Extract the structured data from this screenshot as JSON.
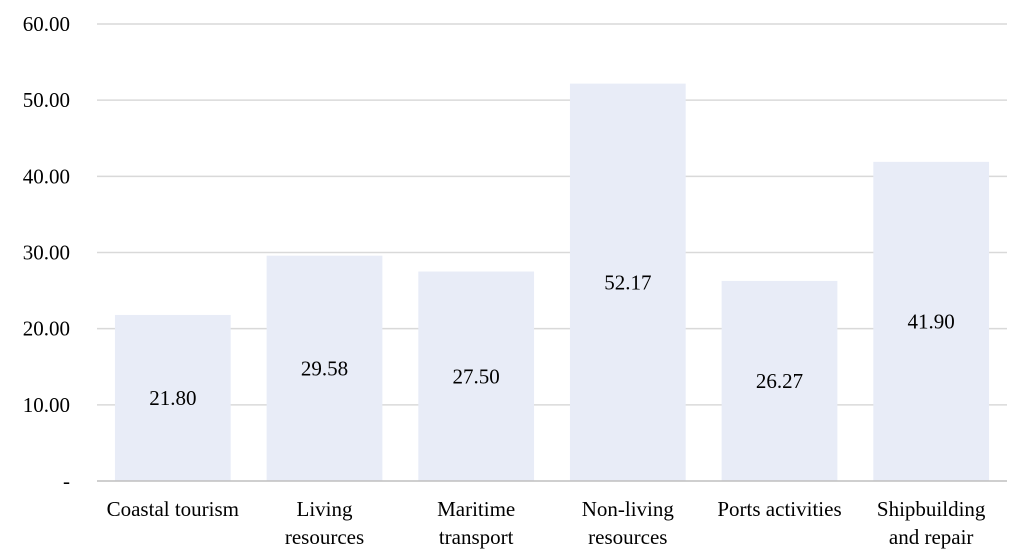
{
  "chart_data": {
    "type": "bar",
    "categories": [
      [
        "Coastal tourism"
      ],
      [
        "Living",
        "resources"
      ],
      [
        "Maritime",
        "transport"
      ],
      [
        "Non-living",
        "resources"
      ],
      [
        "Ports activities"
      ],
      [
        "Shipbuilding",
        "and repair"
      ]
    ],
    "values": [
      21.8,
      29.58,
      27.5,
      52.17,
      26.27,
      41.9
    ],
    "data_labels": [
      "21.80",
      "29.58",
      "27.50",
      "52.17",
      "26.27",
      "41.90"
    ],
    "title": "",
    "xlabel": "",
    "ylabel": "",
    "ylim": [
      0,
      60
    ],
    "y_ticks": [
      {
        "value": 0,
        "label": "-"
      },
      {
        "value": 10,
        "label": "10.00"
      },
      {
        "value": 20,
        "label": "20.00"
      },
      {
        "value": 30,
        "label": "30.00"
      },
      {
        "value": 40,
        "label": "40.00"
      },
      {
        "value": 50,
        "label": "50.00"
      },
      {
        "value": 60,
        "label": "60.00"
      }
    ],
    "grid": true,
    "legend": "none",
    "colors": {
      "bar": "#e8ecf7",
      "grid": "#d9d9d9",
      "axis": "#bfbfbf",
      "text": "#000000"
    }
  }
}
